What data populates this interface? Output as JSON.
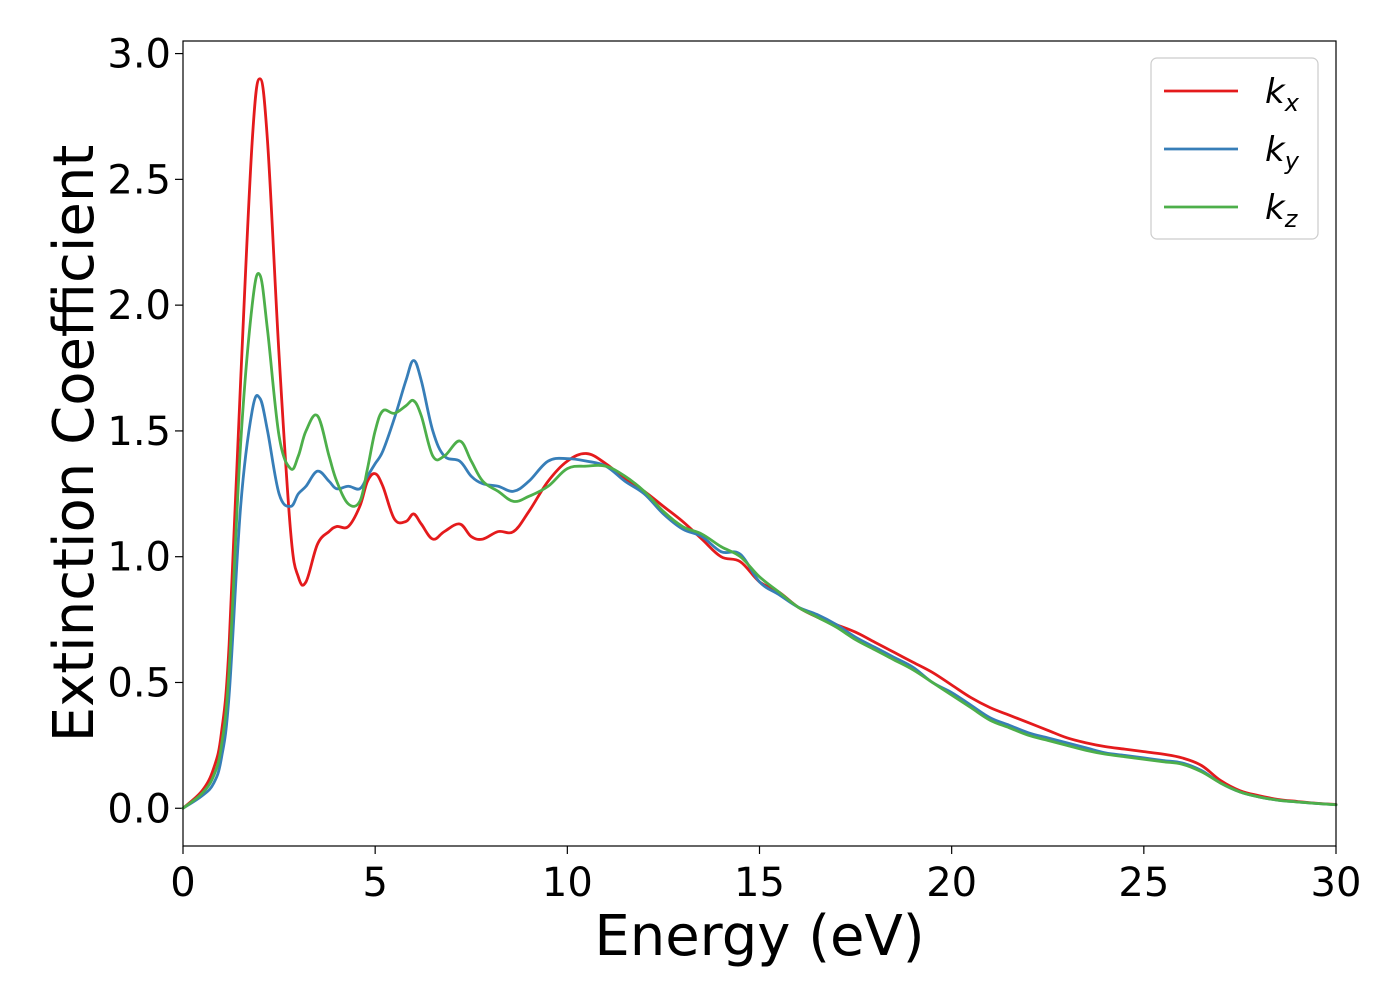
{
  "chart_data": {
    "type": "line",
    "title": "",
    "xlabel": "Energy (eV)",
    "ylabel": "Extinction Coefficient",
    "xlim": [
      0,
      30
    ],
    "ylim": [
      -0.15,
      3.05
    ],
    "x_ticks": [
      0,
      5,
      10,
      15,
      20,
      25,
      30
    ],
    "x_tick_labels": [
      "0",
      "5",
      "10",
      "15",
      "20",
      "25",
      "30"
    ],
    "y_ticks": [
      0.0,
      0.5,
      1.0,
      1.5,
      2.0,
      2.5,
      3.0
    ],
    "y_tick_labels": [
      "0.0",
      "0.5",
      "1.0",
      "1.5",
      "2.0",
      "2.5",
      "3.0"
    ],
    "grid": false,
    "legend": {
      "position": "top-right"
    },
    "series": [
      {
        "name": "k_x",
        "label_main": "k",
        "label_sub": "x",
        "color": "#e41a1c",
        "x": [
          0,
          0.5,
          0.8,
          1.0,
          1.2,
          1.5,
          1.8,
          2.0,
          2.2,
          2.5,
          2.8,
          3.0,
          3.2,
          3.5,
          3.8,
          4.0,
          4.3,
          4.6,
          4.8,
          5.0,
          5.2,
          5.5,
          5.8,
          6.0,
          6.2,
          6.5,
          6.8,
          7.2,
          7.5,
          7.8,
          8.2,
          8.6,
          9.0,
          9.5,
          10.0,
          10.5,
          11.0,
          11.5,
          12.0,
          12.5,
          13.0,
          13.5,
          14.0,
          14.5,
          15.0,
          15.5,
          16.0,
          16.5,
          17.0,
          17.5,
          18.0,
          18.5,
          19.0,
          19.5,
          20.0,
          20.5,
          21.0,
          21.5,
          22.0,
          22.5,
          23.0,
          23.5,
          24.0,
          24.5,
          25.0,
          25.5,
          26.0,
          26.5,
          27.0,
          27.5,
          28.0,
          28.5,
          29.0,
          29.5,
          30.0
        ],
        "y": [
          0.0,
          0.07,
          0.16,
          0.3,
          0.65,
          1.7,
          2.65,
          2.9,
          2.65,
          1.8,
          1.1,
          0.92,
          0.9,
          1.05,
          1.1,
          1.12,
          1.12,
          1.2,
          1.3,
          1.33,
          1.28,
          1.15,
          1.14,
          1.17,
          1.13,
          1.07,
          1.1,
          1.13,
          1.08,
          1.07,
          1.1,
          1.1,
          1.18,
          1.3,
          1.38,
          1.41,
          1.37,
          1.31,
          1.26,
          1.2,
          1.14,
          1.07,
          1.0,
          0.98,
          0.9,
          0.86,
          0.8,
          0.76,
          0.73,
          0.7,
          0.66,
          0.62,
          0.58,
          0.54,
          0.49,
          0.44,
          0.4,
          0.37,
          0.34,
          0.31,
          0.28,
          0.26,
          0.245,
          0.235,
          0.225,
          0.215,
          0.2,
          0.17,
          0.11,
          0.07,
          0.05,
          0.035,
          0.027,
          0.02,
          0.015
        ]
      },
      {
        "name": "k_y",
        "label_main": "k",
        "label_sub": "y",
        "color": "#377eb8",
        "x": [
          0,
          0.5,
          0.8,
          1.0,
          1.2,
          1.5,
          1.8,
          2.0,
          2.2,
          2.5,
          2.8,
          3.0,
          3.2,
          3.5,
          3.8,
          4.0,
          4.3,
          4.6,
          4.8,
          5.0,
          5.2,
          5.5,
          5.8,
          6.0,
          6.2,
          6.5,
          6.8,
          7.2,
          7.5,
          7.8,
          8.2,
          8.6,
          9.0,
          9.5,
          10.0,
          10.5,
          11.0,
          11.5,
          12.0,
          12.5,
          13.0,
          13.5,
          14.0,
          14.5,
          15.0,
          15.5,
          16.0,
          16.5,
          17.0,
          17.5,
          18.0,
          18.5,
          19.0,
          19.5,
          20.0,
          20.5,
          21.0,
          21.5,
          22.0,
          22.5,
          23.0,
          23.5,
          24.0,
          24.5,
          25.0,
          25.5,
          26.0,
          26.5,
          27.0,
          27.5,
          28.0,
          28.5,
          29.0,
          29.5,
          30.0
        ],
        "y": [
          0.0,
          0.05,
          0.1,
          0.2,
          0.45,
          1.2,
          1.58,
          1.63,
          1.5,
          1.25,
          1.2,
          1.25,
          1.28,
          1.34,
          1.3,
          1.27,
          1.28,
          1.27,
          1.32,
          1.37,
          1.42,
          1.55,
          1.7,
          1.78,
          1.7,
          1.5,
          1.4,
          1.38,
          1.32,
          1.29,
          1.28,
          1.26,
          1.3,
          1.38,
          1.39,
          1.38,
          1.36,
          1.3,
          1.25,
          1.17,
          1.11,
          1.08,
          1.02,
          1.01,
          0.9,
          0.85,
          0.8,
          0.77,
          0.73,
          0.68,
          0.64,
          0.6,
          0.56,
          0.5,
          0.46,
          0.41,
          0.36,
          0.33,
          0.3,
          0.28,
          0.26,
          0.24,
          0.22,
          0.21,
          0.2,
          0.19,
          0.18,
          0.15,
          0.1,
          0.065,
          0.045,
          0.032,
          0.025,
          0.019,
          0.014
        ]
      },
      {
        "name": "k_z",
        "label_main": "k",
        "label_sub": "z",
        "color": "#4daf4a",
        "x": [
          0,
          0.5,
          0.8,
          1.0,
          1.2,
          1.5,
          1.8,
          2.0,
          2.2,
          2.5,
          2.8,
          3.0,
          3.2,
          3.5,
          3.8,
          4.0,
          4.3,
          4.6,
          4.8,
          5.0,
          5.2,
          5.5,
          5.8,
          6.0,
          6.2,
          6.5,
          6.8,
          7.2,
          7.5,
          7.8,
          8.2,
          8.6,
          9.0,
          9.5,
          10.0,
          10.5,
          11.0,
          11.5,
          12.0,
          12.5,
          13.0,
          13.5,
          14.0,
          14.5,
          15.0,
          15.5,
          16.0,
          16.5,
          17.0,
          17.5,
          18.0,
          18.5,
          19.0,
          19.5,
          20.0,
          20.5,
          21.0,
          21.5,
          22.0,
          22.5,
          23.0,
          23.5,
          24.0,
          24.5,
          25.0,
          25.5,
          26.0,
          26.5,
          27.0,
          27.5,
          28.0,
          28.5,
          29.0,
          29.5,
          30.0
        ],
        "y": [
          0.0,
          0.06,
          0.13,
          0.25,
          0.55,
          1.45,
          2.0,
          2.12,
          1.9,
          1.48,
          1.35,
          1.4,
          1.5,
          1.56,
          1.4,
          1.3,
          1.21,
          1.22,
          1.35,
          1.5,
          1.58,
          1.57,
          1.6,
          1.62,
          1.56,
          1.4,
          1.4,
          1.46,
          1.38,
          1.3,
          1.26,
          1.22,
          1.24,
          1.28,
          1.35,
          1.36,
          1.36,
          1.32,
          1.26,
          1.18,
          1.12,
          1.09,
          1.04,
          1.0,
          0.92,
          0.86,
          0.8,
          0.76,
          0.72,
          0.67,
          0.63,
          0.59,
          0.55,
          0.5,
          0.45,
          0.4,
          0.35,
          0.32,
          0.29,
          0.27,
          0.25,
          0.23,
          0.215,
          0.205,
          0.195,
          0.185,
          0.175,
          0.145,
          0.1,
          0.065,
          0.045,
          0.032,
          0.025,
          0.019,
          0.014
        ]
      }
    ]
  }
}
